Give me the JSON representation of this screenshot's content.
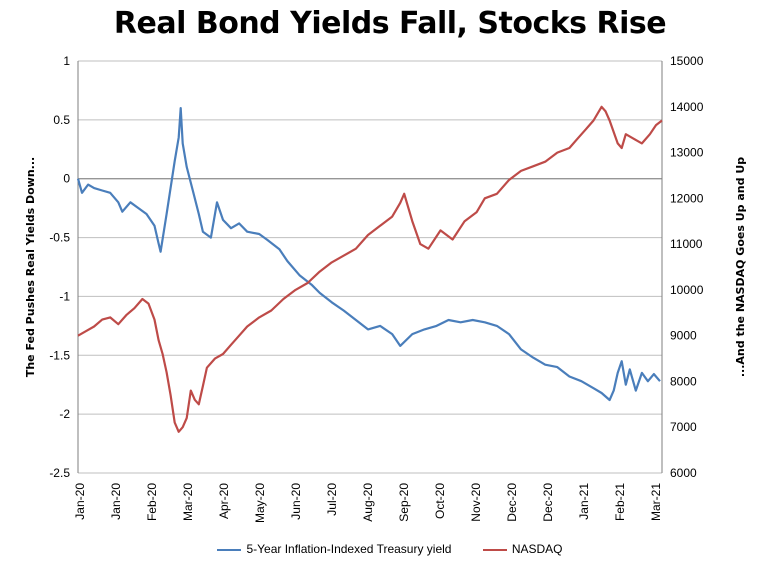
{
  "chart_data": {
    "type": "line",
    "title": "Real Bond Yields Fall, Stocks Rise",
    "ylabel_left": "The Fed Pushes Real Yields Down...",
    "ylabel_right": "...And the NASDAQ Goes Up and Up",
    "x_tick_labels": [
      "Jan-20",
      "Jan-20",
      "Feb-20",
      "Mar-20",
      "Apr-20",
      "May-20",
      "Jun-20",
      "Jul-20",
      "Aug-20",
      "Sep-20",
      "Oct-20",
      "Nov-20",
      "Dec-20",
      "Dec-20",
      "Jan-21",
      "Feb-21",
      "Mar-21"
    ],
    "x_range_months": [
      0,
      14.5
    ],
    "y_left_ticks": [
      "-2.5",
      "-2",
      "-1.5",
      "-1",
      "-0.5",
      "0",
      "0.5",
      "1"
    ],
    "y_left_range": [
      -2.5,
      1
    ],
    "y_right_ticks": [
      "6000",
      "7000",
      "8000",
      "9000",
      "10000",
      "11000",
      "12000",
      "13000",
      "14000",
      "15000"
    ],
    "y_right_range": [
      6000,
      15000
    ],
    "grid": "horizontal",
    "legend_position": "bottom",
    "series": [
      {
        "name": "5-Year Inflation-Indexed Treasury yield",
        "axis": "left",
        "color": "#4a7ebb",
        "x": [
          0,
          0.1,
          0.25,
          0.4,
          0.6,
          0.8,
          1.0,
          1.1,
          1.3,
          1.5,
          1.7,
          1.9,
          2.0,
          2.05,
          2.2,
          2.4,
          2.5,
          2.55,
          2.6,
          2.7,
          2.85,
          3.0,
          3.1,
          3.3,
          3.45,
          3.6,
          3.8,
          4.0,
          4.2,
          4.5,
          4.7,
          5.0,
          5.2,
          5.5,
          5.8,
          6.0,
          6.3,
          6.6,
          6.9,
          7.2,
          7.5,
          7.8,
          8.0,
          8.3,
          8.6,
          8.9,
          9.2,
          9.5,
          9.8,
          10.1,
          10.4,
          10.7,
          11.0,
          11.3,
          11.6,
          11.9,
          12.2,
          12.5,
          12.8,
          13.0,
          13.1,
          13.2,
          13.3,
          13.4,
          13.5,
          13.6,
          13.7,
          13.85,
          14.0,
          14.15,
          14.3,
          14.45
        ],
        "y": [
          0,
          -0.12,
          -0.05,
          -0.08,
          -0.1,
          -0.12,
          -0.2,
          -0.28,
          -0.2,
          -0.25,
          -0.3,
          -0.4,
          -0.55,
          -0.62,
          -0.3,
          0.15,
          0.35,
          0.6,
          0.3,
          0.1,
          -0.1,
          -0.3,
          -0.45,
          -0.5,
          -0.2,
          -0.35,
          -0.42,
          -0.38,
          -0.45,
          -0.47,
          -0.52,
          -0.6,
          -0.7,
          -0.82,
          -0.9,
          -0.97,
          -1.05,
          -1.12,
          -1.2,
          -1.28,
          -1.25,
          -1.32,
          -1.42,
          -1.32,
          -1.28,
          -1.25,
          -1.2,
          -1.22,
          -1.2,
          -1.22,
          -1.25,
          -1.32,
          -1.45,
          -1.52,
          -1.58,
          -1.6,
          -1.68,
          -1.72,
          -1.78,
          -1.82,
          -1.85,
          -1.88,
          -1.8,
          -1.65,
          -1.55,
          -1.75,
          -1.62,
          -1.8,
          -1.65,
          -1.72,
          -1.66,
          -1.72
        ]
      },
      {
        "name": "NASDAQ",
        "axis": "right",
        "color": "#be4b48",
        "x": [
          0,
          0.2,
          0.4,
          0.6,
          0.8,
          1.0,
          1.2,
          1.4,
          1.6,
          1.75,
          1.9,
          2.0,
          2.1,
          2.2,
          2.3,
          2.4,
          2.5,
          2.6,
          2.7,
          2.8,
          2.9,
          3.0,
          3.1,
          3.2,
          3.4,
          3.6,
          3.8,
          4.0,
          4.2,
          4.5,
          4.8,
          5.1,
          5.4,
          5.7,
          6.0,
          6.3,
          6.6,
          6.9,
          7.2,
          7.5,
          7.8,
          8.0,
          8.1,
          8.3,
          8.5,
          8.7,
          9.0,
          9.3,
          9.6,
          9.9,
          10.1,
          10.4,
          10.7,
          11.0,
          11.3,
          11.6,
          11.9,
          12.2,
          12.4,
          12.6,
          12.8,
          13.0,
          13.1,
          13.2,
          13.4,
          13.5,
          13.6,
          13.8,
          14.0,
          14.2,
          14.35,
          14.5
        ],
        "y": [
          9000,
          9100,
          9200,
          9350,
          9400,
          9250,
          9450,
          9600,
          9800,
          9700,
          9350,
          8900,
          8600,
          8200,
          7700,
          7100,
          6900,
          7000,
          7200,
          7800,
          7600,
          7500,
          7900,
          8300,
          8500,
          8600,
          8800,
          9000,
          9200,
          9400,
          9550,
          9800,
          10000,
          10150,
          10400,
          10600,
          10750,
          10900,
          11200,
          11400,
          11600,
          11900,
          12100,
          11500,
          11000,
          10900,
          11300,
          11100,
          11500,
          11700,
          12000,
          12100,
          12400,
          12600,
          12700,
          12800,
          13000,
          13100,
          13300,
          13500,
          13700,
          14000,
          13900,
          13700,
          13200,
          13100,
          13400,
          13300,
          13200,
          13400,
          13600,
          13700
        ]
      }
    ]
  }
}
